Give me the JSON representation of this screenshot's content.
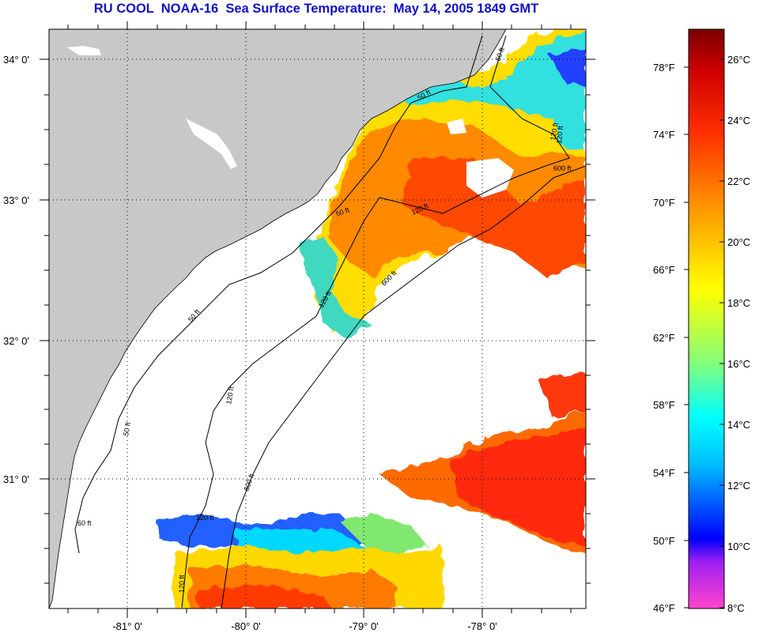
{
  "title": "RU COOL  NOAA-16  Sea Surface Temperature:  May 14, 2005 1849 GMT",
  "map": {
    "lat_labels": [
      "34° 0'",
      "33° 0'",
      "32° 0'",
      "31° 0'"
    ],
    "lon_labels": [
      "-81° 0'",
      "-80° 0'",
      "-79° 0'",
      "-78° 0'"
    ],
    "depth_contours": [
      "50 ft",
      "120 ft",
      "600 ft"
    ],
    "depth_labels": [
      "60 ft",
      "60 ft",
      "120 ft",
      "600 ft",
      "50 ft",
      "120 ft",
      "600 ft",
      "120 ft",
      "50 ft",
      "120 ft",
      "600 ft",
      "120 ft",
      "50 ft",
      "50 ft",
      "120 ft",
      "120 ft"
    ]
  },
  "colorbar": {
    "fahrenheit_labels": [
      "78°F",
      "74°F",
      "70°F",
      "66°F",
      "62°F",
      "58°F",
      "54°F",
      "50°F",
      "46°F"
    ],
    "celsius_labels": [
      "26°C",
      "24°C",
      "22°C",
      "20°C",
      "18°C",
      "16°C",
      "14°C",
      "12°C",
      "10°C",
      "8°C"
    ],
    "colors": [
      "#ff44cc",
      "#a020f0",
      "#0000ff",
      "#00bfff",
      "#00ffff",
      "#7fff7f",
      "#ffff00",
      "#ff9f00",
      "#ff3000",
      "#cc0000",
      "#7a0000"
    ]
  },
  "colors": {
    "land": "#c8c8c8",
    "no_data": "#ffffff",
    "title": "#1010c8"
  }
}
